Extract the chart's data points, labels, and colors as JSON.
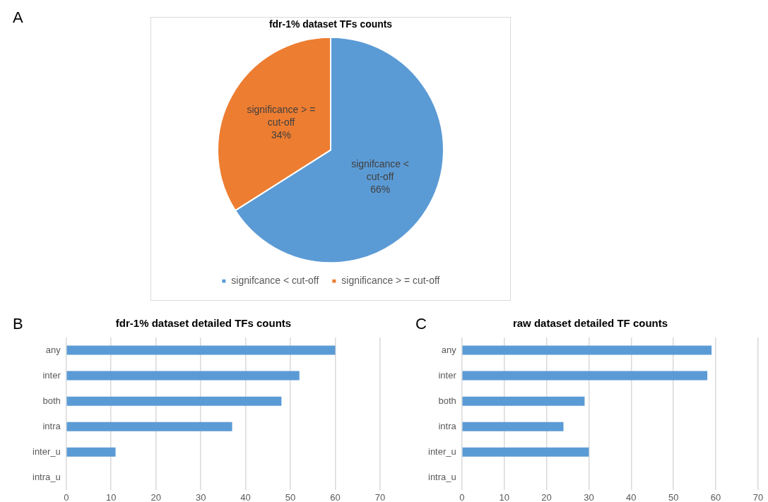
{
  "chart_data": [
    {
      "type": "pie",
      "title": "fdr-1% dataset TFs counts",
      "annotations": [
        "A"
      ],
      "categories": [
        "signifcance < cut-off",
        "significance > = cut-off"
      ],
      "values": [
        66,
        34
      ],
      "colors": [
        "#5b9bd5",
        "#ed7d31"
      ],
      "value_labels": [
        "66%",
        "34%"
      ],
      "legend": "bottom"
    },
    {
      "type": "bar",
      "orientation": "horizontal",
      "title": "fdr-1% dataset detailed TFs counts",
      "annotations": [
        "B"
      ],
      "categories": [
        "any",
        "inter",
        "both",
        "intra",
        "inter_u",
        "intra_u"
      ],
      "values": [
        60,
        52,
        48,
        37,
        11,
        0
      ],
      "color": "#5b9bd5",
      "xlim": [
        0,
        70
      ],
      "xticks": [
        0,
        10,
        20,
        30,
        40,
        50,
        60,
        70
      ],
      "grid": "x",
      "legend": false
    },
    {
      "type": "bar",
      "orientation": "horizontal",
      "title": "raw dataset detailed TF counts",
      "annotations": [
        "C"
      ],
      "categories": [
        "any",
        "inter",
        "both",
        "intra",
        "inter_u",
        "intra_u"
      ],
      "values": [
        59,
        58,
        29,
        24,
        30,
        0
      ],
      "color": "#5b9bd5",
      "xlim": [
        0,
        70
      ],
      "xticks": [
        0,
        10,
        20,
        30,
        40,
        50,
        60,
        70
      ],
      "grid": "x",
      "legend": false
    }
  ]
}
